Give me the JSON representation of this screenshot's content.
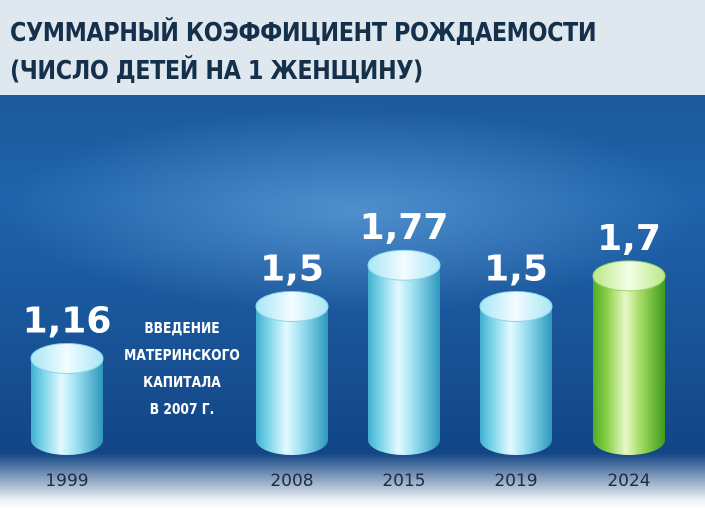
{
  "header": {
    "title_line1": "СУММАРНЫЙ КОЭФФИЦИЕНТ РОЖДАЕМОСТИ",
    "title_line2": "(ЧИСЛО ДЕТЕЙ НА 1 ЖЕНЩИНУ)"
  },
  "annotation": {
    "lines": [
      "ВВЕДЕНИЕ",
      "МАТЕРИНСКОГО",
      "КАПИТАЛА",
      "В 2007 Г."
    ]
  },
  "chart_data": {
    "type": "bar",
    "title": "СУММАРНЫЙ КОЭФФИЦИЕНТ РОЖДАЕМОСТИ (ЧИСЛО ДЕТЕЙ НА 1 ЖЕНЩИНУ)",
    "categories": [
      "1999",
      "2008",
      "2015",
      "2019",
      "2024"
    ],
    "values": [
      1.16,
      1.5,
      1.77,
      1.5,
      1.7
    ],
    "value_labels": [
      "1,16",
      "1,5",
      "1,77",
      "1,5",
      "1,7"
    ],
    "highlight_index": 4,
    "colors": {
      "bar": "#7fd6ea",
      "bar_highlight": "#8cd14a",
      "label": "#ffffff",
      "background": "#1c5a9c"
    },
    "grid": false,
    "legend": "none"
  }
}
